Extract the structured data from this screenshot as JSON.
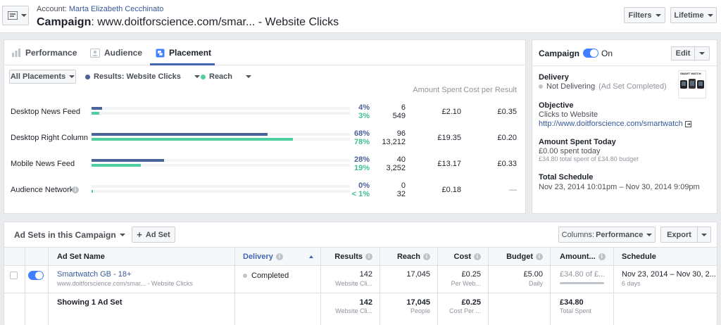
{
  "header": {
    "account_prefix": "Account:",
    "account_name": "Marta Elizabeth Cecchinato",
    "campaign_prefix": "Campaign",
    "campaign_name": ": www.doitforscience.com/smar... - Website Clicks",
    "filters_label": "Filters",
    "lifetime_label": "Lifetime"
  },
  "tabs": [
    {
      "label": "Performance",
      "icon": "chart-icon"
    },
    {
      "label": "Audience",
      "icon": "people-icon"
    },
    {
      "label": "Placement",
      "icon": "placement-icon"
    }
  ],
  "placement": {
    "filter_label": "All Placements",
    "legend": [
      {
        "label": "Results: Website Clicks",
        "color": "#4a6398"
      },
      {
        "label": "Reach",
        "color": "#4fce9f"
      }
    ],
    "col_amount": "Amount Spent",
    "col_cost": "Cost per Result",
    "rows": [
      {
        "label": "Desktop News Feed",
        "results_pct": "4%",
        "reach_pct": "3%",
        "results_frac": 0.04,
        "reach_frac": 0.03,
        "results": "6",
        "reach": "549",
        "amount": "£2.10",
        "cost": "£0.35"
      },
      {
        "label": "Desktop Right Column",
        "results_pct": "68%",
        "reach_pct": "78%",
        "results_frac": 0.68,
        "reach_frac": 0.78,
        "results": "96",
        "reach": "13,212",
        "amount": "£19.35",
        "cost": "£0.20"
      },
      {
        "label": "Mobile News Feed",
        "results_pct": "28%",
        "reach_pct": "19%",
        "results_frac": 0.28,
        "reach_frac": 0.19,
        "results": "40",
        "reach": "3,252",
        "amount": "£13.17",
        "cost": "£0.33"
      },
      {
        "label": "Audience Network",
        "results_pct": "0%",
        "reach_pct": "< 1%",
        "results_frac": 0.0,
        "reach_frac": 0.005,
        "results": "0",
        "reach": "32",
        "amount": "£0.18",
        "cost": "—"
      }
    ]
  },
  "side": {
    "title": "Campaign",
    "toggle_state": "On",
    "edit_label": "Edit",
    "delivery_title": "Delivery",
    "delivery_status": "Not Delivering",
    "delivery_note": "(Ad Set Completed)",
    "objective_title": "Objective",
    "objective_value": "Clicks to Website",
    "objective_link": "http://www.doitforscience.com/smartwatch",
    "amount_title": "Amount Spent Today",
    "amount_value": "£0.00 spent today",
    "amount_note": "£34.80 total spent of £34.80 budget",
    "schedule_title": "Total Schedule",
    "schedule_value": "Nov 23, 2014 10:01pm – Nov 30, 2014 9:09pm",
    "thumb_text": "SMART WATCH"
  },
  "adsets": {
    "title": "Ad Sets in this Campaign",
    "add_label": "Ad Set",
    "columns_label": "Columns:",
    "columns_value": "Performance",
    "export_label": "Export",
    "headers": {
      "name": "Ad Set Name",
      "delivery": "Delivery",
      "results": "Results",
      "reach": "Reach",
      "cost": "Cost",
      "budget": "Budget",
      "amount": "Amount...",
      "schedule": "Schedule"
    },
    "row": {
      "name": "Smartwatch GB - 18+",
      "sub": "www.doitforscience.com/smar... - Website Clicks",
      "delivery": "Completed",
      "results": "142",
      "results_sub": "Website Cli...",
      "reach": "17,045",
      "cost": "£0.25",
      "cost_sub": "Per Web...",
      "budget": "£5.00",
      "budget_sub": "Daily",
      "amount": "£34.80 of £...",
      "schedule": "Nov 23, 2014 – Nov 30, 2...",
      "schedule_sub": "6 days"
    },
    "total": {
      "label": "Showing 1 Ad Set",
      "results": "142",
      "results_sub": "Website Cli...",
      "reach": "17,045",
      "reach_sub": "People",
      "cost": "£0.25",
      "cost_sub": "Cost Per ...",
      "amount": "£34.80",
      "amount_sub": "Total Spent"
    }
  },
  "colors": {
    "results": "#4a6398",
    "reach": "#4fce9f",
    "link": "#365899",
    "toggle": "#4080ff"
  }
}
